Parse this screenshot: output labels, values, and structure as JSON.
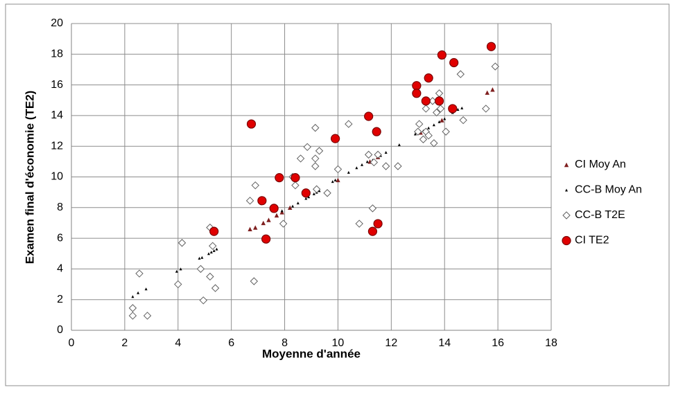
{
  "chart_data": {
    "type": "scatter",
    "x_label": "Moyenne d'année",
    "y_label": "Examen final d'économie (TE2)",
    "xlim": [
      0,
      18
    ],
    "xticks": [
      0,
      2,
      4,
      6,
      8,
      10,
      12,
      14,
      16,
      18
    ],
    "ylim": [
      0,
      20
    ],
    "yticks": [
      0,
      2,
      4,
      6,
      8,
      10,
      12,
      14,
      16,
      18,
      20
    ],
    "grid": true,
    "legend": "right",
    "series": [
      {
        "name": "CI Moy An",
        "color": "#7f1f1f",
        "marker": "triangle",
        "x": [
          6.7,
          6.9,
          7.2,
          7.4,
          7.7,
          7.9,
          8.2,
          10.0,
          11.2,
          11.5,
          13.1,
          13.9,
          15.6,
          15.8
        ],
        "values": [
          6.6,
          6.7,
          7.0,
          7.2,
          7.5,
          7.7,
          8.0,
          9.8,
          11.0,
          11.3,
          12.9,
          13.7,
          15.5,
          15.7
        ]
      },
      {
        "name": "CC-B Moy An",
        "color": "#000000",
        "marker": "small-triangle",
        "x": [
          2.3,
          2.5,
          2.8,
          3.95,
          4.1,
          4.8,
          4.9,
          5.15,
          5.25,
          5.35,
          5.45,
          7.9,
          8.3,
          8.5,
          8.8,
          8.9,
          9.1,
          9.2,
          9.3,
          9.8,
          9.9,
          10.4,
          10.7,
          10.9,
          11.1,
          11.3,
          11.6,
          11.8,
          12.3,
          12.9,
          13.0,
          13.2,
          13.4,
          13.6,
          13.8,
          14.0,
          14.3,
          14.5,
          14.65
        ],
        "values": [
          2.2,
          2.45,
          2.7,
          3.85,
          4.0,
          4.7,
          4.75,
          5.0,
          5.1,
          5.2,
          5.3,
          7.8,
          8.1,
          8.3,
          8.6,
          8.7,
          8.9,
          9.0,
          9.1,
          9.7,
          9.8,
          10.3,
          10.6,
          10.8,
          11.0,
          11.1,
          11.4,
          11.6,
          12.1,
          12.8,
          12.9,
          13.0,
          13.2,
          13.4,
          13.6,
          13.8,
          14.2,
          14.4,
          14.5
        ]
      },
      {
        "name": "CC-B T2E",
        "color": "#606060",
        "marker": "diamond",
        "x": [
          2.3,
          2.3,
          2.55,
          2.85,
          4.0,
          4.15,
          4.85,
          4.95,
          5.2,
          5.2,
          5.3,
          5.4,
          6.7,
          6.85,
          6.9,
          7.95,
          8.3,
          8.4,
          8.6,
          8.85,
          9.15,
          9.15,
          9.15,
          9.2,
          9.3,
          9.6,
          10.0,
          10.4,
          10.8,
          11.15,
          11.3,
          11.35,
          11.5,
          11.8,
          12.25,
          13.0,
          13.05,
          13.2,
          13.3,
          13.3,
          13.4,
          13.55,
          13.6,
          13.7,
          13.8,
          13.85,
          14.05,
          14.6,
          14.7,
          15.55,
          15.9
        ],
        "values": [
          1.45,
          0.95,
          3.7,
          0.95,
          3.0,
          5.7,
          4.0,
          1.95,
          3.5,
          6.7,
          5.5,
          2.75,
          8.45,
          3.2,
          9.45,
          6.95,
          10.0,
          9.45,
          11.2,
          11.95,
          13.2,
          11.2,
          10.7,
          9.2,
          11.7,
          8.95,
          10.5,
          13.45,
          6.95,
          11.45,
          7.95,
          10.95,
          11.45,
          10.7,
          10.7,
          12.95,
          13.45,
          12.45,
          12.95,
          14.45,
          12.7,
          14.95,
          12.2,
          14.2,
          15.45,
          14.45,
          12.95,
          16.7,
          13.7,
          14.45,
          17.2
        ]
      },
      {
        "name": "CI TE2",
        "color": "#e00000",
        "marker": "circle",
        "x": [
          5.35,
          6.75,
          7.15,
          7.3,
          7.6,
          7.8,
          8.4,
          8.8,
          9.9,
          11.15,
          11.3,
          11.45,
          11.5,
          12.95,
          12.95,
          13.3,
          13.4,
          13.8,
          13.9,
          14.3,
          14.35,
          15.75
        ],
        "values": [
          6.45,
          13.45,
          8.45,
          5.95,
          7.95,
          9.95,
          9.95,
          8.95,
          12.5,
          13.95,
          6.45,
          12.95,
          6.95,
          15.95,
          15.45,
          14.95,
          16.45,
          14.95,
          17.95,
          14.45,
          17.45,
          18.5
        ]
      }
    ]
  }
}
